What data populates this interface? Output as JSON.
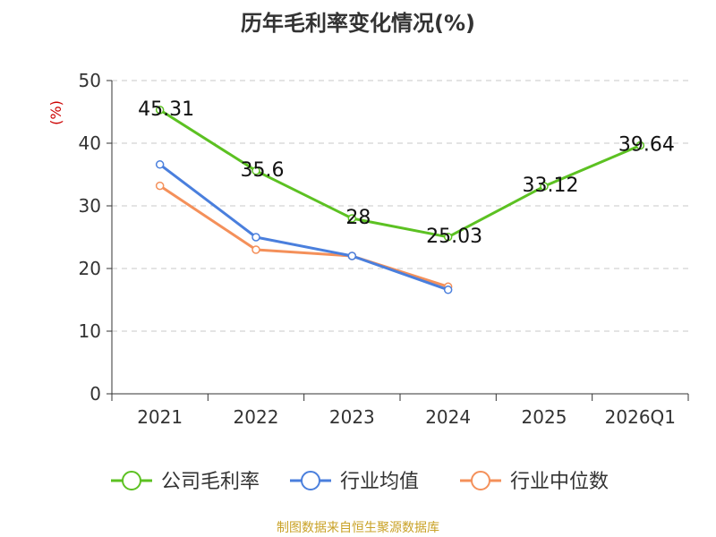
{
  "chart_data": {
    "type": "line",
    "title": "历年毛利率变化情况(%)",
    "ylabel": "(%)",
    "xlabel": "",
    "categories": [
      "2021",
      "2022",
      "2023",
      "2024",
      "2025",
      "2026Q1"
    ],
    "ylim": [
      0,
      50
    ],
    "yticks": [
      "0",
      "10",
      "20",
      "30",
      "40",
      "50"
    ],
    "grid": true,
    "legend_position": "bottom",
    "series": [
      {
        "name": "公司毛利率",
        "color": "#5cc122",
        "values": [
          45.31,
          35.6,
          28,
          25.03,
          33.12,
          39.64
        ],
        "labels": [
          "45.31",
          "35.6",
          "28",
          "25.03",
          "33.12",
          "39.64"
        ]
      },
      {
        "name": "行业均值",
        "color": "#4a7fdd",
        "values": [
          36.6,
          25.0,
          22.0,
          16.6,
          null,
          null
        ]
      },
      {
        "name": "行业中位数",
        "color": "#f4905a",
        "values": [
          33.2,
          23.0,
          22.0,
          17.1,
          null,
          null
        ]
      }
    ]
  },
  "footer": {
    "source": "制图数据来自恒生聚源数据库"
  }
}
